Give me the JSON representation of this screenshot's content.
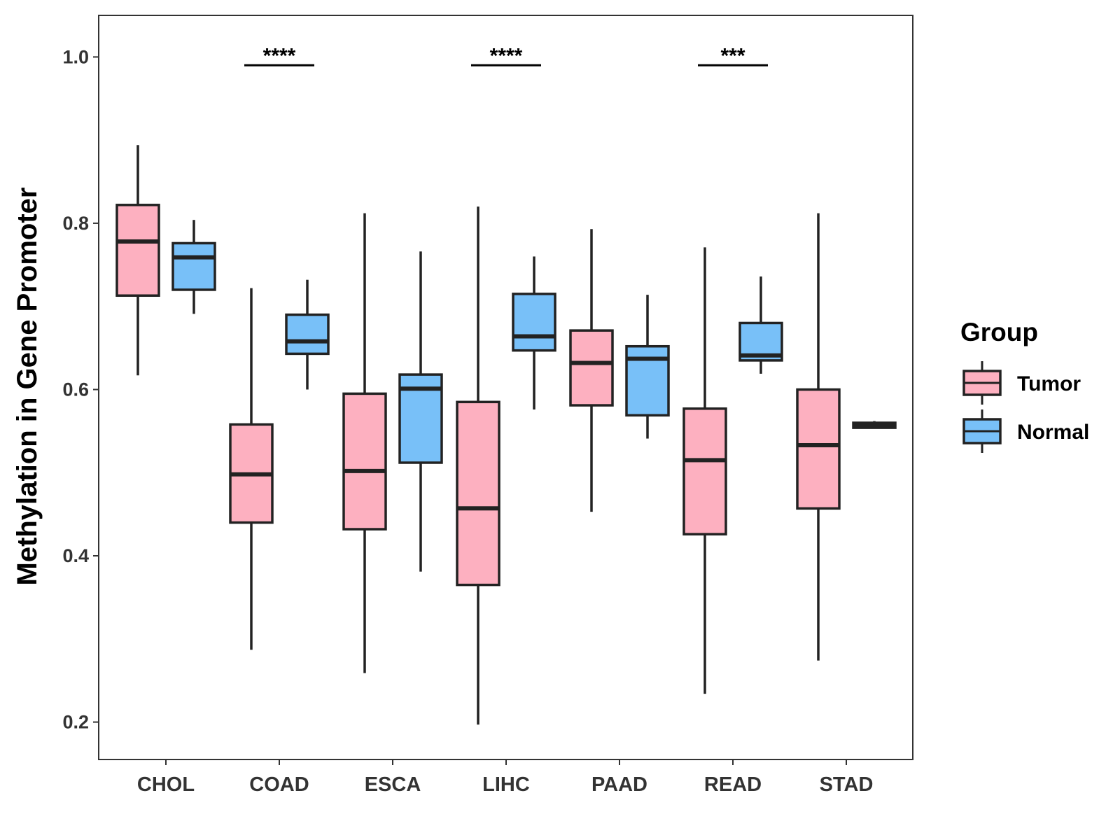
{
  "chart_data": {
    "type": "boxplot",
    "title": "",
    "xlabel": "",
    "ylabel": "Methylation in Gene Promoter",
    "ylim": [
      0.155,
      1.05
    ],
    "yticks": [
      0.2,
      0.4,
      0.6,
      0.8,
      1.0
    ],
    "ytick_labels": [
      "0.2",
      "0.4",
      "0.6",
      "0.8",
      "1.0"
    ],
    "grid": false,
    "categories": [
      "CHOL",
      "COAD",
      "ESCA",
      "LIHC",
      "PAAD",
      "READ",
      "STAD"
    ],
    "legend": {
      "title": "Group",
      "position": "right",
      "entries": [
        {
          "name": "Tumor",
          "color": "#fdb0c0"
        },
        {
          "name": "Normal",
          "color": "#78c0f8"
        }
      ]
    },
    "series": [
      {
        "name": "Tumor",
        "color": "#fdb0c0",
        "boxes": [
          {
            "min": 0.617,
            "q1": 0.713,
            "median": 0.778,
            "q3": 0.822,
            "max": 0.894
          },
          {
            "min": 0.287,
            "q1": 0.44,
            "median": 0.498,
            "q3": 0.558,
            "max": 0.722
          },
          {
            "min": 0.259,
            "q1": 0.432,
            "median": 0.502,
            "q3": 0.595,
            "max": 0.812
          },
          {
            "min": 0.197,
            "q1": 0.365,
            "median": 0.457,
            "q3": 0.585,
            "max": 0.82
          },
          {
            "min": 0.453,
            "q1": 0.581,
            "median": 0.632,
            "q3": 0.671,
            "max": 0.793
          },
          {
            "min": 0.234,
            "q1": 0.426,
            "median": 0.515,
            "q3": 0.577,
            "max": 0.771
          },
          {
            "min": 0.274,
            "q1": 0.457,
            "median": 0.533,
            "q3": 0.6,
            "max": 0.812
          }
        ]
      },
      {
        "name": "Normal",
        "color": "#78c0f8",
        "boxes": [
          {
            "min": 0.691,
            "q1": 0.72,
            "median": 0.759,
            "q3": 0.776,
            "max": 0.804
          },
          {
            "min": 0.6,
            "q1": 0.643,
            "median": 0.658,
            "q3": 0.69,
            "max": 0.732
          },
          {
            "min": 0.381,
            "q1": 0.512,
            "median": 0.601,
            "q3": 0.618,
            "max": 0.766
          },
          {
            "min": 0.576,
            "q1": 0.647,
            "median": 0.664,
            "q3": 0.715,
            "max": 0.76
          },
          {
            "min": 0.541,
            "q1": 0.569,
            "median": 0.637,
            "q3": 0.652,
            "max": 0.714
          },
          {
            "min": 0.619,
            "q1": 0.635,
            "median": 0.641,
            "q3": 0.68,
            "max": 0.736
          },
          {
            "min": 0.554,
            "q1": 0.554,
            "median": 0.557,
            "q3": 0.56,
            "max": 0.562
          }
        ]
      }
    ],
    "annotations": [
      {
        "category": "COAD",
        "text": "****",
        "y": 0.99
      },
      {
        "category": "LIHC",
        "text": "****",
        "y": 0.99
      },
      {
        "category": "READ",
        "text": "***",
        "y": 0.99
      }
    ]
  }
}
